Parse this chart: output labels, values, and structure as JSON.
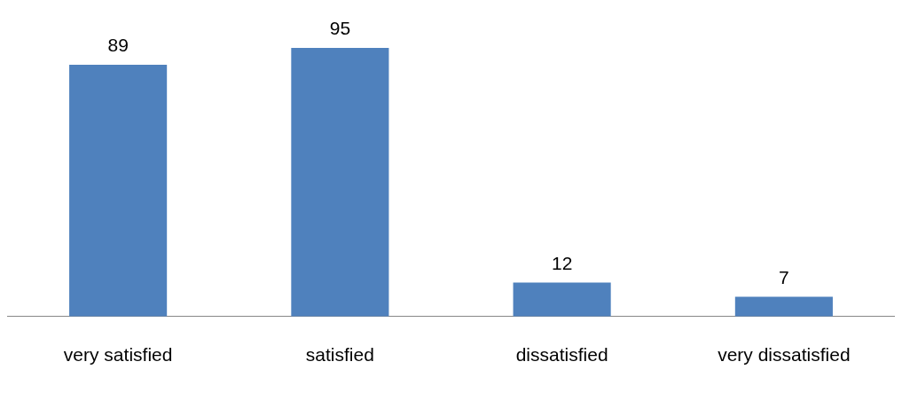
{
  "chart_data": {
    "type": "bar",
    "categories": [
      "very satisfied",
      "satisfied",
      "dissatisfied",
      "very dissatisfied"
    ],
    "values": [
      89,
      95,
      12,
      7
    ],
    "color": "#4f81bd",
    "data_labels": true
  }
}
